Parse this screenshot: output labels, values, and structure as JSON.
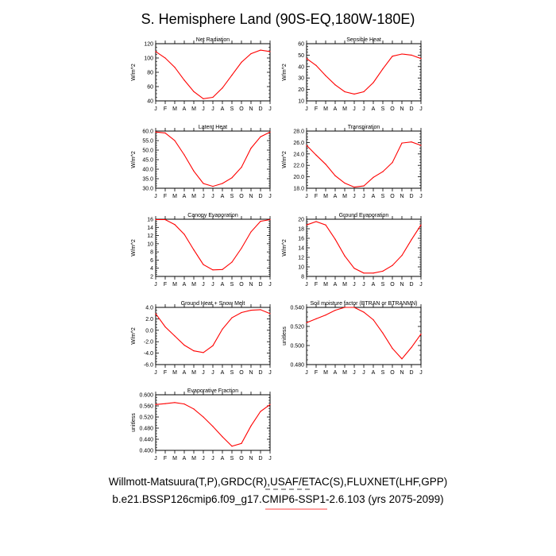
{
  "title": "S. Hemisphere Land (90S-EQ,180W-180E)",
  "footer": {
    "line1": "Willmott-Matsuura(T,P),GRDC(R),USAF/ETAC(S),FLUXNET(LHF,GPP)",
    "line2": "b.e21.BSSP126cmip6.f09_g17.CMIP6-SSP1-2.6.103 (yrs 2075-2099)",
    "line_colors": [
      "#000000",
      "#ff0000"
    ]
  },
  "colors": {
    "series": "#ff0000",
    "axis": "#000000",
    "background": "#ffffff"
  },
  "chart_data": [
    {
      "type": "line",
      "title": "Net Radiation",
      "xlabel": "",
      "ylabel": "W/m^2",
      "categories": [
        "J",
        "F",
        "M",
        "A",
        "M",
        "J",
        "J",
        "A",
        "S",
        "O",
        "N",
        "D",
        "J"
      ],
      "ylim": [
        40,
        120
      ],
      "yticks": [
        "40",
        "60",
        "80",
        "100",
        "120"
      ],
      "series": [
        {
          "name": "model",
          "values": [
            109,
            100,
            87,
            69,
            53,
            43,
            45,
            58,
            76,
            94,
            106,
            111,
            109
          ]
        }
      ]
    },
    {
      "type": "line",
      "title": "Sensible Heat",
      "xlabel": "",
      "ylabel": "W/m^2",
      "categories": [
        "J",
        "F",
        "M",
        "A",
        "M",
        "J",
        "J",
        "A",
        "S",
        "O",
        "N",
        "D",
        "J"
      ],
      "ylim": [
        10,
        60
      ],
      "yticks": [
        "10",
        "20",
        "30",
        "40",
        "50",
        "60"
      ],
      "series": [
        {
          "name": "model",
          "values": [
            47,
            41,
            32,
            24,
            18,
            16,
            18,
            26,
            38,
            49,
            51,
            50,
            47
          ]
        }
      ]
    },
    {
      "type": "line",
      "title": "Latent Heat",
      "xlabel": "",
      "ylabel": "W/m^2",
      "categories": [
        "J",
        "F",
        "M",
        "A",
        "M",
        "J",
        "J",
        "A",
        "S",
        "O",
        "N",
        "D",
        "J"
      ],
      "ylim": [
        30,
        60
      ],
      "yticks": [
        "30.0",
        "35.0",
        "40.0",
        "45.0",
        "50.0",
        "55.0",
        "60.0"
      ],
      "series": [
        {
          "name": "model",
          "values": [
            59.5,
            59,
            55,
            47.5,
            39,
            32.5,
            31,
            32.5,
            35.5,
            41,
            51,
            57,
            59.5
          ]
        }
      ]
    },
    {
      "type": "line",
      "title": "Transpiration",
      "xlabel": "",
      "ylabel": "W/m^2",
      "categories": [
        "J",
        "F",
        "M",
        "A",
        "M",
        "J",
        "J",
        "A",
        "S",
        "O",
        "N",
        "D",
        "J"
      ],
      "ylim": [
        18,
        28
      ],
      "yticks": [
        "18.0",
        "20.0",
        "22.0",
        "24.0",
        "26.0",
        "28.0"
      ],
      "series": [
        {
          "name": "model",
          "values": [
            25.5,
            23.8,
            22.2,
            20.2,
            18.9,
            18.2,
            18.4,
            19.9,
            20.9,
            22.5,
            25.9,
            26.1,
            25.5
          ]
        }
      ]
    },
    {
      "type": "line",
      "title": "Canopy Evaporation",
      "xlabel": "",
      "ylabel": "W/m^2",
      "categories": [
        "J",
        "F",
        "M",
        "A",
        "M",
        "J",
        "J",
        "A",
        "S",
        "O",
        "N",
        "D",
        "J"
      ],
      "ylim": [
        2,
        16
      ],
      "yticks": [
        "2",
        "4",
        "6",
        "8",
        "10",
        "12",
        "14",
        "16"
      ],
      "series": [
        {
          "name": "model",
          "values": [
            15.9,
            15.9,
            14.7,
            12.3,
            8.5,
            4.9,
            3.6,
            3.7,
            5.5,
            8.9,
            12.9,
            15.5,
            15.9
          ]
        }
      ]
    },
    {
      "type": "line",
      "title": "Ground Evaporation",
      "xlabel": "",
      "ylabel": "W/m^2",
      "categories": [
        "J",
        "F",
        "M",
        "A",
        "M",
        "J",
        "J",
        "A",
        "S",
        "O",
        "N",
        "D",
        "J"
      ],
      "ylim": [
        8,
        20
      ],
      "yticks": [
        "8",
        "10",
        "12",
        "14",
        "16",
        "18",
        "20"
      ],
      "series": [
        {
          "name": "model",
          "values": [
            18.8,
            19.5,
            18.8,
            15.8,
            12.3,
            9.7,
            8.7,
            8.7,
            9.1,
            10.3,
            12.4,
            15.7,
            18.8
          ]
        }
      ]
    },
    {
      "type": "line",
      "title": "Ground Heat + Snow Melt",
      "xlabel": "",
      "ylabel": "W/m^2",
      "categories": [
        "J",
        "F",
        "M",
        "A",
        "M",
        "J",
        "J",
        "A",
        "S",
        "O",
        "N",
        "D",
        "J"
      ],
      "ylim": [
        -6,
        4
      ],
      "yticks": [
        "-6.0",
        "-4.0",
        "-2.0",
        "0.0",
        "2.0",
        "4.0"
      ],
      "series": [
        {
          "name": "model",
          "values": [
            2.9,
            0.6,
            -1.0,
            -2.6,
            -3.6,
            -3.9,
            -2.7,
            0.2,
            2.2,
            3.1,
            3.5,
            3.6,
            2.9
          ]
        }
      ]
    },
    {
      "type": "line",
      "title": "Soil moisture factor (BTRAN or BTRANMN)",
      "xlabel": "",
      "ylabel": "unitless",
      "categories": [
        "J",
        "F",
        "M",
        "A",
        "M",
        "J",
        "J",
        "A",
        "S",
        "O",
        "N",
        "D",
        "J"
      ],
      "ylim": [
        0.48,
        0.54
      ],
      "yticks": [
        "0.480",
        "0.500",
        "0.520",
        "0.540"
      ],
      "series": [
        {
          "name": "model",
          "values": [
            0.524,
            0.528,
            0.532,
            0.537,
            0.54,
            0.54,
            0.535,
            0.527,
            0.513,
            0.497,
            0.486,
            0.498,
            0.512
          ]
        }
      ]
    },
    {
      "type": "line",
      "title": "Evaporative Fraction",
      "xlabel": "",
      "ylabel": "unitless",
      "categories": [
        "J",
        "F",
        "M",
        "A",
        "M",
        "J",
        "J",
        "A",
        "S",
        "O",
        "N",
        "D",
        "J"
      ],
      "ylim": [
        0.4,
        0.6
      ],
      "yticks": [
        "0.400",
        "0.440",
        "0.480",
        "0.520",
        "0.560",
        "0.600"
      ],
      "series": [
        {
          "name": "model",
          "values": [
            0.565,
            0.568,
            0.572,
            0.567,
            0.549,
            0.52,
            0.486,
            0.449,
            0.415,
            0.425,
            0.488,
            0.54,
            0.565
          ]
        }
      ]
    }
  ]
}
